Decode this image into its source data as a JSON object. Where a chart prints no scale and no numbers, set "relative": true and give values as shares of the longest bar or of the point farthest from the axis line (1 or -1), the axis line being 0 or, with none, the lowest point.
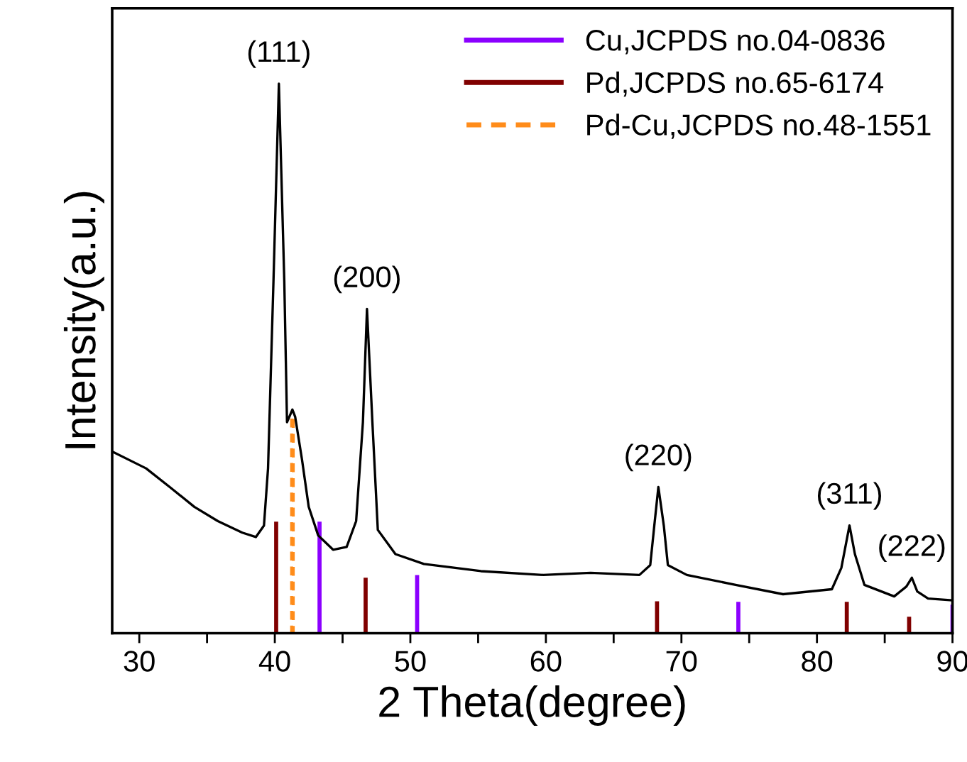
{
  "chart_data": {
    "type": "line",
    "relative": true,
    "xlabel": "2 Theta(degree)",
    "ylabel": "Intensity(a.u.)",
    "xlim": [
      28,
      90
    ],
    "xticks": [
      30,
      {
        "value": 35,
        "label": null
      },
      40,
      {
        "value": 45,
        "label": null
      },
      50,
      {
        "value": 55,
        "label": null
      },
      60,
      {
        "value": 65,
        "label": null
      },
      70,
      {
        "value": 75,
        "label": null
      },
      80,
      {
        "value": 85,
        "label": null
      },
      90
    ],
    "tick_labels": "x",
    "grid": false,
    "legend": "top right",
    "series": [
      {
        "color": "#000000",
        "x": [
          28.06,
          30.5,
          32.3,
          34.06,
          35.8,
          37.6,
          38.6,
          39.2,
          39.5,
          39.9,
          40.3,
          40.7,
          40.9,
          41.3,
          41.5,
          42.0,
          42.5,
          43.2,
          44.3,
          45.3,
          46.0,
          46.5,
          46.8,
          47.2,
          47.6,
          48.9,
          51.0,
          55.2,
          59.8,
          63.3,
          66.9,
          67.7,
          68.0,
          68.3,
          68.7,
          69.0,
          70.4,
          74.0,
          77.5,
          81.1,
          81.8,
          82.4,
          82.8,
          83.5,
          85.7,
          86.6,
          87.0,
          87.4,
          88.2,
          89.9
        ],
        "values": [
          0.33,
          0.3,
          0.265,
          0.23,
          0.204,
          0.183,
          0.175,
          0.196,
          0.3,
          0.64,
          1.0,
          0.64,
          0.384,
          0.407,
          0.394,
          0.317,
          0.23,
          0.178,
          0.152,
          0.157,
          0.204,
          0.384,
          0.59,
          0.384,
          0.188,
          0.144,
          0.126,
          0.113,
          0.106,
          0.11,
          0.106,
          0.124,
          0.196,
          0.266,
          0.196,
          0.124,
          0.106,
          0.088,
          0.071,
          0.08,
          0.119,
          0.196,
          0.144,
          0.088,
          0.067,
          0.085,
          0.101,
          0.076,
          0.063,
          0.06
        ]
      },
      {
        "type": "bar",
        "name": "Cu,JCPDS no.04-0836",
        "color": "#8b00ff",
        "x": [
          43.3,
          50.5,
          74.2,
          90
        ],
        "values": [
          0.203,
          0.106,
          0.057,
          0.052
        ]
      },
      {
        "type": "bar",
        "name": "Pd,JCPDS no.65-6174",
        "color": "#800000",
        "x": [
          40.1,
          46.7,
          68.2,
          82.2,
          86.8
        ],
        "values": [
          0.203,
          0.101,
          0.058,
          0.057,
          0.03
        ]
      },
      {
        "type": "bar",
        "name": "Pd-Cu,JCPDS no.48-1551",
        "color": "#ff8c1a",
        "line_style": "dashed",
        "x": [
          41.3
        ],
        "values": [
          0.394
        ]
      }
    ],
    "annotations": [
      {
        "text": "(111)",
        "x": 40.3,
        "y": 1.0
      },
      {
        "text": "(200)",
        "x": 46.8,
        "y": 0.59
      },
      {
        "text": "(220)",
        "x": 68.3,
        "y": 0.266
      },
      {
        "text": "(311)",
        "x": 82.4,
        "y": 0.196
      },
      {
        "text": "(222)",
        "x": 87.0,
        "y": 0.101
      }
    ]
  }
}
